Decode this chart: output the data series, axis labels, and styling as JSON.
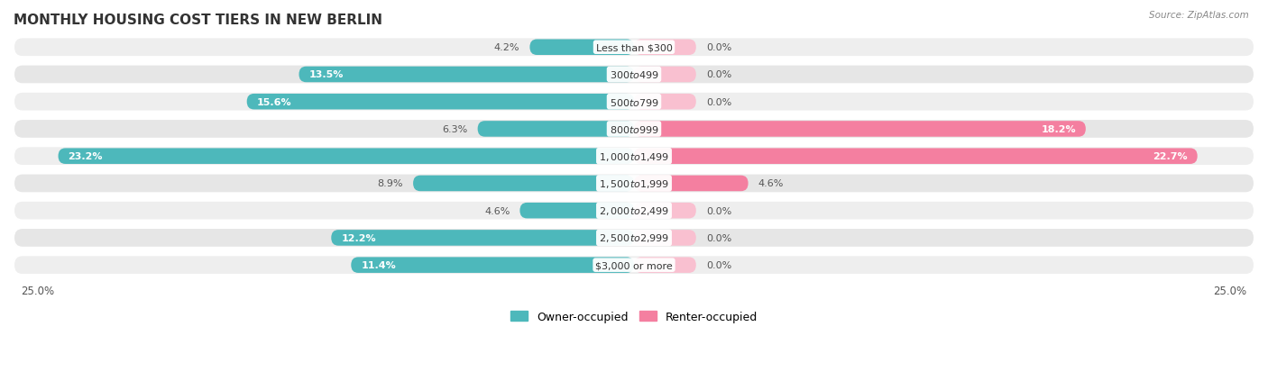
{
  "title": "MONTHLY HOUSING COST TIERS IN NEW BERLIN",
  "source": "Source: ZipAtlas.com",
  "categories": [
    "Less than $300",
    "$300 to $499",
    "$500 to $799",
    "$800 to $999",
    "$1,000 to $1,499",
    "$1,500 to $1,999",
    "$2,000 to $2,499",
    "$2,500 to $2,999",
    "$3,000 or more"
  ],
  "owner_values": [
    4.2,
    13.5,
    15.6,
    6.3,
    23.2,
    8.9,
    4.6,
    12.2,
    11.4
  ],
  "renter_values": [
    0.0,
    0.0,
    0.0,
    18.2,
    22.7,
    4.6,
    0.0,
    0.0,
    0.0
  ],
  "owner_color": "#4db8bb",
  "renter_color": "#f47fa0",
  "owner_color_light": "#b2dfe0",
  "renter_color_light": "#f9c0d0",
  "pill_bg": "#eeeeee",
  "pill_bg_alt": "#e6e6e6",
  "xlim": 25.0,
  "label_fontsize": 8.0,
  "title_fontsize": 11,
  "legend_fontsize": 9,
  "axis_label_fontsize": 8.5,
  "category_fontsize": 8.0,
  "small_bar_min": 1.5,
  "inner_label_threshold": 10.0
}
